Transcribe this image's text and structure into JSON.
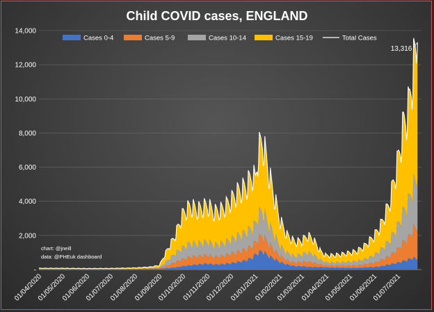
{
  "chart_data": {
    "type": "area",
    "stacked": true,
    "title": "Child COVID cases, ENGLAND",
    "credits": [
      "chart: @jneill",
      "data: @PHEuk dashboard"
    ],
    "ylim": [
      0,
      14000
    ],
    "yticks": [
      0,
      2000,
      4000,
      6000,
      8000,
      10000,
      12000,
      14000
    ],
    "ytick_labels": [
      "-",
      "2,000",
      "4,000",
      "6,000",
      "8,000",
      "10,000",
      "12,000",
      "14,000"
    ],
    "xlim": [
      "2020-04-01",
      "2021-07-31"
    ],
    "xticks": [
      "2020-04-01",
      "2020-05-01",
      "2020-06-01",
      "2020-07-01",
      "2020-08-01",
      "2020-09-01",
      "2020-10-01",
      "2020-11-01",
      "2020-12-01",
      "2021-01-01",
      "2021-02-01",
      "2021-03-01",
      "2021-04-01",
      "2021-05-01",
      "2021-06-01",
      "2021-07-01"
    ],
    "xtick_labels": [
      "01/04/2020",
      "01/05/2020",
      "01/06/2020",
      "01/07/2020",
      "01/08/2020",
      "01/09/2020",
      "01/10/2020",
      "01/11/2020",
      "01/12/2020",
      "01/01/2021",
      "01/02/2021",
      "01/03/2021",
      "01/04/2021",
      "01/05/2021",
      "01/06/2021",
      "01/07/2021"
    ],
    "grid": true,
    "legend_position": "top",
    "annotation": {
      "text": "13,316",
      "date": "2021-07-26",
      "value": 13316
    },
    "x": [
      "2020-04-01",
      "2020-05-01",
      "2020-06-01",
      "2020-07-01",
      "2020-08-01",
      "2020-08-20",
      "2020-09-01",
      "2020-09-10",
      "2020-09-20",
      "2020-10-01",
      "2020-10-10",
      "2020-10-20",
      "2020-11-01",
      "2020-11-10",
      "2020-11-20",
      "2020-12-01",
      "2020-12-10",
      "2020-12-20",
      "2020-12-28",
      "2021-01-01",
      "2021-01-05",
      "2021-01-10",
      "2021-01-15",
      "2021-01-20",
      "2021-02-01",
      "2021-02-10",
      "2021-02-20",
      "2021-03-01",
      "2021-03-08",
      "2021-03-15",
      "2021-03-25",
      "2021-04-01",
      "2021-04-10",
      "2021-04-20",
      "2021-05-01",
      "2021-05-10",
      "2021-05-20",
      "2021-06-01",
      "2021-06-10",
      "2021-06-20",
      "2021-07-01",
      "2021-07-08",
      "2021-07-15",
      "2021-07-20",
      "2021-07-26"
    ],
    "series": [
      {
        "name": "Cases 0-4",
        "color": "#4472c4",
        "values": [
          20,
          20,
          15,
          15,
          20,
          30,
          40,
          80,
          120,
          200,
          250,
          300,
          350,
          300,
          320,
          380,
          450,
          550,
          700,
          900,
          1000,
          1100,
          900,
          750,
          450,
          300,
          200,
          200,
          160,
          150,
          150,
          130,
          120,
          110,
          100,
          100,
          130,
          150,
          200,
          300,
          400,
          500,
          600,
          700,
          600
        ]
      },
      {
        "name": "Cases 5-9",
        "color": "#ed7d31",
        "values": [
          10,
          10,
          8,
          8,
          12,
          20,
          30,
          150,
          300,
          400,
          500,
          480,
          500,
          450,
          480,
          550,
          600,
          650,
          700,
          700,
          850,
          900,
          800,
          650,
          380,
          250,
          200,
          250,
          300,
          260,
          150,
          120,
          120,
          130,
          140,
          150,
          180,
          250,
          350,
          500,
          800,
          1100,
          1300,
          1700,
          1800
        ]
      },
      {
        "name": "Cases 10-14",
        "color": "#a5a5a5",
        "values": [
          10,
          10,
          8,
          8,
          15,
          25,
          40,
          250,
          500,
          700,
          800,
          750,
          800,
          700,
          750,
          850,
          950,
          1000,
          1100,
          1100,
          1400,
          1500,
          1300,
          1100,
          600,
          450,
          380,
          450,
          550,
          500,
          260,
          180,
          180,
          190,
          220,
          250,
          300,
          450,
          650,
          900,
          1400,
          1800,
          2200,
          2600,
          2800
        ]
      },
      {
        "name": "Cases 15-19",
        "color": "#ffc000",
        "values": [
          40,
          40,
          35,
          40,
          55,
          80,
          140,
          600,
          1000,
          2000,
          2200,
          2000,
          2150,
          1950,
          2000,
          2300,
          2600,
          2700,
          3100,
          2600,
          3800,
          4100,
          3500,
          2800,
          1500,
          1050,
          850,
          800,
          1000,
          900,
          500,
          400,
          430,
          470,
          540,
          600,
          800,
          1150,
          1500,
          2200,
          3800,
          5100,
          5600,
          6800,
          8100
        ]
      }
    ],
    "total": {
      "name": "Total Cases",
      "color": "#ffffff",
      "values": [
        80,
        80,
        66,
        71,
        102,
        155,
        250,
        1080,
        1920,
        3300,
        3750,
        3530,
        3800,
        3400,
        3550,
        4080,
        4600,
        4900,
        5600,
        5300,
        7050,
        7600,
        6500,
        5300,
        2930,
        2050,
        1630,
        1700,
        2010,
        1810,
        1060,
        830,
        850,
        900,
        1000,
        1100,
        1410,
        2000,
        2700,
        3900,
        6400,
        8500,
        9700,
        11800,
        13300
      ]
    }
  }
}
